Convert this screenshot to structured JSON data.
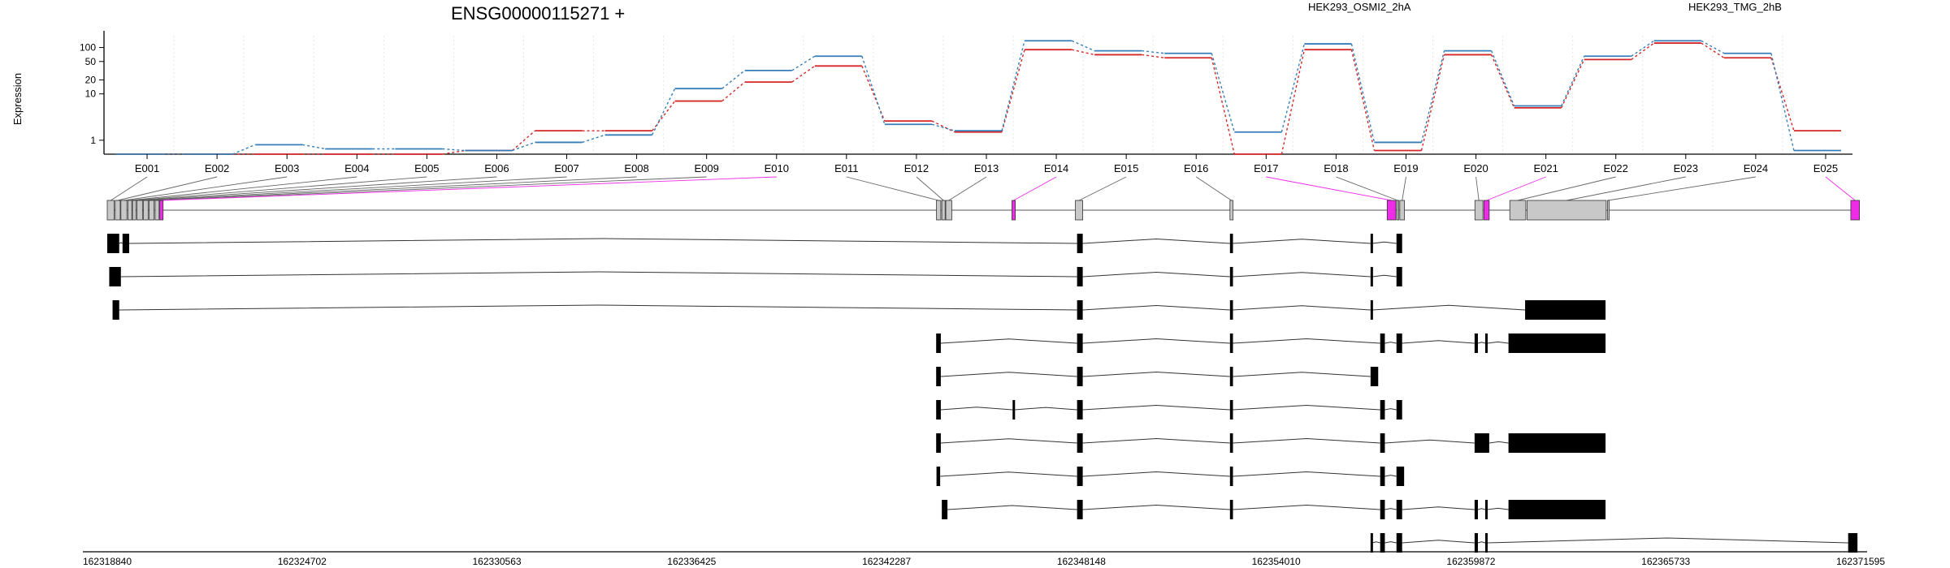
{
  "chart_data": {
    "type": "line",
    "title": "ENSG00000115271 +",
    "ylabel": "Expression",
    "yscale": "log",
    "ylim": [
      0.5,
      180
    ],
    "yticks": [
      1,
      10,
      20,
      50,
      100
    ],
    "ytick_labels": [
      "1",
      "10",
      "20",
      "50",
      "100"
    ],
    "legend_position": "top",
    "categories": [
      "E001",
      "E002",
      "E003",
      "E004",
      "E005",
      "E006",
      "E007",
      "E008",
      "E009",
      "E010",
      "E011",
      "E012",
      "E013",
      "E014",
      "E015",
      "E016",
      "E017",
      "E018",
      "E019",
      "E020",
      "E021",
      "E022",
      "E023",
      "E024",
      "E025"
    ],
    "series": [
      {
        "name": "HEK293_OSMI2_2hA",
        "color": "#d62728",
        "values": [
          0.5,
          0.5,
          0.5,
          0.5,
          0.5,
          0.6,
          1.6,
          1.6,
          7,
          18,
          40,
          2.6,
          1.5,
          90,
          70,
          60,
          0.5,
          90,
          0.6,
          70,
          5,
          55,
          125,
          60,
          1.6
        ]
      },
      {
        "name": "HEK293_TMG_2hB",
        "color": "#377eb8",
        "values": [
          0.5,
          0.5,
          0.8,
          0.65,
          0.65,
          0.6,
          0.9,
          1.3,
          13,
          32,
          65,
          2.2,
          1.6,
          140,
          85,
          75,
          1.5,
          120,
          0.9,
          85,
          5.5,
          65,
          140,
          75,
          0.6
        ]
      }
    ],
    "exon_blocks": [
      {
        "start": 162318840,
        "end": 162319050
      },
      {
        "start": 162319080,
        "end": 162319230
      },
      {
        "start": 162319250,
        "end": 162319430
      },
      {
        "start": 162319460,
        "end": 162319580
      },
      {
        "start": 162319600,
        "end": 162319700
      },
      {
        "start": 162319730,
        "end": 162319900
      },
      {
        "start": 162319930,
        "end": 162320070
      },
      {
        "start": 162320100,
        "end": 162320250
      },
      {
        "start": 162320280,
        "end": 162320400
      },
      {
        "start": 162320420,
        "end": 162320520
      },
      {
        "start": 162343790,
        "end": 162343920
      },
      {
        "start": 162343950,
        "end": 162344050
      },
      {
        "start": 162344070,
        "end": 162344250
      },
      {
        "start": 162346060,
        "end": 162346160
      },
      {
        "start": 162347970,
        "end": 162348190
      },
      {
        "start": 162352620,
        "end": 162352710
      },
      {
        "start": 162357350,
        "end": 162357610
      },
      {
        "start": 162357640,
        "end": 162357700
      },
      {
        "start": 162357730,
        "end": 162357870
      },
      {
        "start": 162359990,
        "end": 162360230
      },
      {
        "start": 162360260,
        "end": 162360420
      },
      {
        "start": 162361040,
        "end": 162361520
      },
      {
        "start": 162361560,
        "end": 162363940
      },
      {
        "start": 162363980,
        "end": 162364010
      },
      {
        "start": 162371300,
        "end": 162371560
      }
    ],
    "highlighted_exons": [
      "E010",
      "E014",
      "E017",
      "E021",
      "E025"
    ],
    "exon_colors": {
      "normal": "#c8c8c8",
      "highlight": "#ee2ce8"
    },
    "transcripts": [
      [
        [
          162318840,
          162319200
        ],
        [
          162319300,
          162319500
        ],
        [
          162348020,
          162348190
        ],
        [
          162352620,
          162352710
        ],
        [
          162356850,
          162356900
        ],
        [
          162357630,
          162357800
        ]
      ],
      [
        [
          162318900,
          162319250
        ],
        [
          162348020,
          162348190
        ],
        [
          162352620,
          162352710
        ],
        [
          162356850,
          162356900
        ],
        [
          162357630,
          162357800
        ]
      ],
      [
        [
          162319000,
          162319200
        ],
        [
          162348020,
          162348190
        ],
        [
          162352620,
          162352710
        ],
        [
          162356850,
          162356900
        ],
        [
          162361500,
          162363920
        ]
      ],
      [
        [
          162343780,
          162343920
        ],
        [
          162348020,
          162348190
        ],
        [
          162352620,
          162352710
        ],
        [
          162357140,
          162357280
        ],
        [
          162357630,
          162357800
        ],
        [
          162359980,
          162360080
        ],
        [
          162360300,
          162360360
        ],
        [
          162361000,
          162363920
        ]
      ],
      [
        [
          162343780,
          162343920
        ],
        [
          162348020,
          162348190
        ],
        [
          162352620,
          162352710
        ],
        [
          162356850,
          162357080
        ]
      ],
      [
        [
          162343780,
          162343920
        ],
        [
          162346080,
          162346140
        ],
        [
          162348020,
          162348190
        ],
        [
          162352620,
          162352710
        ],
        [
          162357140,
          162357280
        ],
        [
          162357630,
          162357800
        ]
      ],
      [
        [
          162343780,
          162343920
        ],
        [
          162348020,
          162348190
        ],
        [
          162352620,
          162352710
        ],
        [
          162357140,
          162357280
        ],
        [
          162359980,
          162360420
        ],
        [
          162361000,
          162363920
        ]
      ],
      [
        [
          162343790,
          162343900
        ],
        [
          162348020,
          162348190
        ],
        [
          162352620,
          162352710
        ],
        [
          162357140,
          162357280
        ],
        [
          162357630,
          162357860
        ]
      ],
      [
        [
          162343950,
          162344120
        ],
        [
          162348020,
          162348190
        ],
        [
          162352620,
          162352710
        ],
        [
          162357140,
          162357280
        ],
        [
          162357630,
          162357800
        ],
        [
          162359980,
          162360080
        ],
        [
          162360300,
          162360360
        ],
        [
          162361000,
          162363920
        ]
      ],
      [
        [
          162356850,
          162356900
        ],
        [
          162357140,
          162357280
        ],
        [
          162357630,
          162357800
        ],
        [
          162359980,
          162360080
        ],
        [
          162360300,
          162360360
        ],
        [
          162371220,
          162371500
        ]
      ]
    ],
    "genomic_range": [
      162318840,
      162371595
    ],
    "xticks": [
      162318840,
      162324702,
      162330563,
      162336425,
      162342287,
      162348148,
      162354010,
      162359872,
      162365733,
      162371595
    ],
    "xtick_labels": [
      "162318840",
      "162324702",
      "162330563",
      "162336425",
      "162342287",
      "162348148",
      "162354010",
      "162359872",
      "162365733",
      "162371595"
    ]
  }
}
